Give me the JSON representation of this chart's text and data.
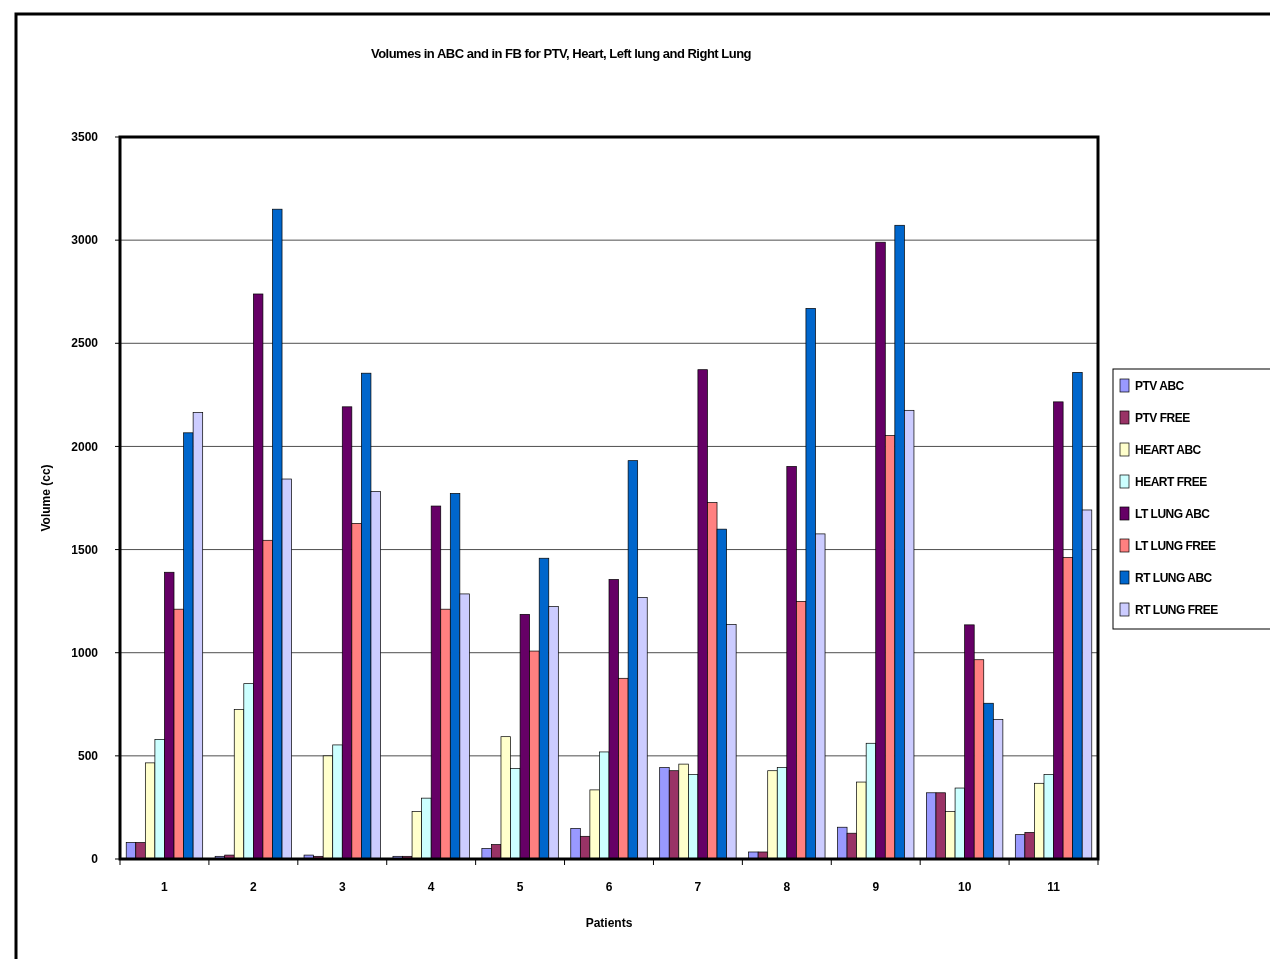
{
  "chart_data": {
    "type": "bar",
    "title": "Volumes in ABC and in FB for PTV, Heart, Left lung and Right Lung",
    "xlabel": "Patients",
    "ylabel": "Volume (cc)",
    "categories": [
      "1",
      "2",
      "3",
      "4",
      "5",
      "6",
      "7",
      "8",
      "9",
      "10",
      "11"
    ],
    "series": [
      {
        "name": "PTV ABC",
        "color": "#9999ff",
        "values": [
          80,
          13,
          19,
          13,
          51,
          148,
          443,
          34,
          154,
          321,
          118
        ]
      },
      {
        "name": "PTV FREE",
        "color": "#993366",
        "values": [
          80,
          19,
          13,
          13,
          70,
          110,
          428,
          34,
          125,
          321,
          129
        ]
      },
      {
        "name": "HEART ABC",
        "color": "#ffffcc",
        "values": [
          466,
          724,
          500,
          230,
          593,
          335,
          460,
          428,
          373,
          230,
          367
        ]
      },
      {
        "name": "HEART FREE",
        "color": "#ccffff",
        "values": [
          580,
          850,
          553,
          295,
          439,
          519,
          409,
          443,
          561,
          344,
          409
        ]
      },
      {
        "name": "LT LUNG ABC",
        "color": "#660066",
        "values": [
          1390,
          2739,
          2192,
          1711,
          1186,
          1355,
          2372,
          1903,
          2990,
          1135,
          2216
        ]
      },
      {
        "name": "LT LUNG FREE",
        "color": "#ff8080",
        "values": [
          1211,
          1545,
          1627,
          1211,
          1008,
          876,
          1728,
          1249,
          2053,
          966,
          1462
        ]
      },
      {
        "name": "RT LUNG ABC",
        "color": "#0066cc",
        "values": [
          2066,
          3150,
          2355,
          1772,
          1458,
          1931,
          1599,
          2669,
          3072,
          755,
          2359
        ]
      },
      {
        "name": "RT LUNG FREE",
        "color": "#ccccff",
        "values": [
          2165,
          1842,
          1781,
          1285,
          1224,
          1268,
          1137,
          1576,
          2175,
          677,
          1692
        ]
      }
    ],
    "ylim": [
      0,
      3500
    ],
    "yticks": [
      0,
      500,
      1000,
      1500,
      2000,
      2500,
      3000,
      3500
    ],
    "grid": "y",
    "legend": "right"
  }
}
